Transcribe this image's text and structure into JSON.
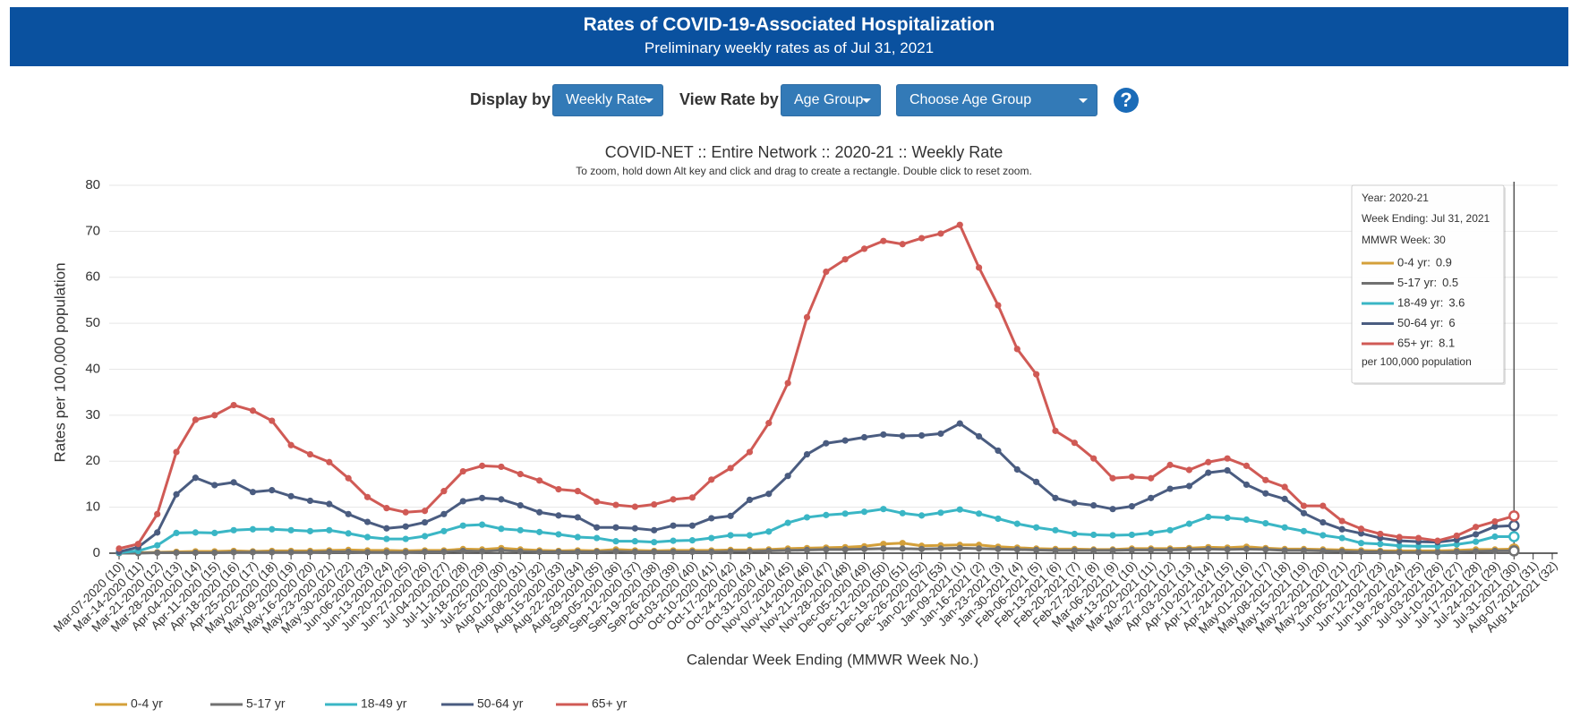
{
  "header": {
    "title": "Rates of COVID-19-Associated Hospitalization",
    "subtitle": "Preliminary weekly rates as of Jul 31, 2021"
  },
  "controls": {
    "display_label": "Display by",
    "display_value": "Weekly Rate",
    "view_label": "View Rate by",
    "view_value": "Age Group",
    "choose": "Choose Age Group",
    "help": "?"
  },
  "chart_data": {
    "type": "line",
    "title": "COVID-NET :: Entire Network :: 2020-21 :: Weekly Rate",
    "subtitle": "To zoom, hold down Alt key and click and drag to create a rectangle. Double click to reset zoom.",
    "x_label": "Calendar Week Ending (MMWR Week No.)",
    "y_label": "Rates per 100,000 population",
    "categories": [
      "Mar-07-2020 (10)",
      "Mar-14-2020 (11)",
      "Mar-21-2020 (12)",
      "Mar-28-2020 (13)",
      "Apr-04-2020 (14)",
      "Apr-11-2020 (15)",
      "Apr-18-2020 (16)",
      "Apr-25-2020 (17)",
      "May-02-2020 (18)",
      "May-09-2020 (19)",
      "May-16-2020 (20)",
      "May-23-2020 (21)",
      "May-30-2020 (22)",
      "Jun-06-2020 (23)",
      "Jun-13-2020 (24)",
      "Jun-20-2020 (25)",
      "Jun-27-2020 (26)",
      "Jul-04-2020 (27)",
      "Jul-11-2020 (28)",
      "Jul-18-2020 (29)",
      "Jul-25-2020 (30)",
      "Aug-01-2020 (31)",
      "Aug-08-2020 (32)",
      "Aug-15-2020 (33)",
      "Aug-22-2020 (34)",
      "Aug-29-2020 (35)",
      "Sep-05-2020 (36)",
      "Sep-12-2020 (37)",
      "Sep-19-2020 (38)",
      "Sep-26-2020 (39)",
      "Oct-03-2020 (40)",
      "Oct-10-2020 (41)",
      "Oct-17-2020 (42)",
      "Oct-24-2020 (43)",
      "Oct-31-2020 (44)",
      "Nov-07-2020 (45)",
      "Nov-14-2020 (46)",
      "Nov-21-2020 (47)",
      "Nov-28-2020 (48)",
      "Dec-05-2020 (49)",
      "Dec-12-2020 (50)",
      "Dec-19-2020 (51)",
      "Dec-26-2020 (52)",
      "Jan-02-2021 (53)",
      "Jan-09-2021 (1)",
      "Jan-16-2021 (2)",
      "Jan-23-2021 (3)",
      "Jan-30-2021 (4)",
      "Feb-06-2021 (5)",
      "Feb-13-2021 (6)",
      "Feb-20-2021 (7)",
      "Feb-27-2021 (8)",
      "Mar-06-2021 (9)",
      "Mar-13-2021 (10)",
      "Mar-20-2021 (11)",
      "Mar-27-2021 (12)",
      "Apr-03-2021 (13)",
      "Apr-10-2021 (14)",
      "Apr-17-2021 (15)",
      "Apr-24-2021 (16)",
      "May-01-2021 (17)",
      "May-08-2021 (18)",
      "May-15-2021 (19)",
      "May-22-2021 (20)",
      "May-29-2021 (21)",
      "Jun-05-2021 (22)",
      "Jun-12-2021 (23)",
      "Jun-19-2021 (24)",
      "Jun-26-2021 (25)",
      "Jul-03-2021 (26)",
      "Jul-10-2021 (27)",
      "Jul-17-2021 (28)",
      "Jul-24-2021 (29)",
      "Jul-31-2021 (30)",
      "Aug-07-2021 (31)",
      "Aug-14-2021 (32)"
    ],
    "series": [
      {
        "name": "0-4 yr",
        "color": "#d4a03a",
        "values": [
          0,
          0.1,
          0.2,
          0.3,
          0.4,
          0.4,
          0.5,
          0.4,
          0.5,
          0.5,
          0.5,
          0.6,
          0.7,
          0.6,
          0.6,
          0.5,
          0.6,
          0.6,
          0.9,
          0.8,
          1.1,
          0.8,
          0.6,
          0.5,
          0.6,
          0.5,
          0.8,
          0.6,
          0.5,
          0.6,
          0.6,
          0.6,
          0.7,
          0.7,
          0.8,
          1,
          1.1,
          1.2,
          1.3,
          1.5,
          2,
          2.2,
          1.6,
          1.7,
          1.8,
          1.8,
          1.4,
          1.2,
          1,
          0.9,
          0.9,
          0.8,
          0.8,
          1,
          1,
          1,
          1.1,
          1.3,
          1.2,
          1.4,
          1.1,
          0.9,
          0.9,
          0.8,
          0.7,
          0.6,
          0.5,
          0.5,
          0.5,
          0.5,
          0.6,
          0.8,
          0.8,
          0.9,
          null,
          null
        ]
      },
      {
        "name": "5-17 yr",
        "color": "#707070",
        "values": [
          0,
          0,
          0.1,
          0.1,
          0.1,
          0.1,
          0.2,
          0.2,
          0.2,
          0.2,
          0.2,
          0.3,
          0.3,
          0.2,
          0.2,
          0.2,
          0.3,
          0.3,
          0.5,
          0.4,
          0.6,
          0.4,
          0.3,
          0.3,
          0.3,
          0.3,
          0.4,
          0.3,
          0.3,
          0.3,
          0.3,
          0.3,
          0.4,
          0.4,
          0.5,
          0.6,
          0.7,
          0.8,
          0.8,
          0.9,
          1,
          1,
          0.9,
          1,
          1.1,
          1,
          0.9,
          0.8,
          0.7,
          0.6,
          0.6,
          0.6,
          0.6,
          0.7,
          0.7,
          0.7,
          0.8,
          0.9,
          0.8,
          0.9,
          0.8,
          0.6,
          0.6,
          0.5,
          0.4,
          0.3,
          0.3,
          0.2,
          0.2,
          0.2,
          0.3,
          0.4,
          0.5,
          0.5,
          null,
          null
        ]
      },
      {
        "name": "18-49 yr",
        "color": "#3ab6c5",
        "values": [
          0.1,
          0.5,
          1.7,
          4.4,
          4.5,
          4.4,
          5,
          5.2,
          5.2,
          5,
          4.8,
          5,
          4.3,
          3.5,
          3.1,
          3.1,
          3.7,
          4.8,
          6,
          6.2,
          5.3,
          5,
          4.6,
          4.1,
          3.5,
          3.3,
          2.6,
          2.6,
          2.4,
          2.7,
          2.8,
          3.3,
          3.9,
          3.9,
          4.7,
          6.6,
          7.8,
          8.3,
          8.6,
          9,
          9.6,
          8.7,
          8.2,
          8.8,
          9.5,
          8.6,
          7.5,
          6.4,
          5.6,
          5,
          4.2,
          4,
          3.9,
          4,
          4.4,
          5,
          6.4,
          7.9,
          7.7,
          7.3,
          6.5,
          5.6,
          4.8,
          3.9,
          3.3,
          2.2,
          2,
          1.6,
          1.5,
          1.5,
          1.9,
          2.5,
          3.6,
          3.6,
          null,
          null
        ]
      },
      {
        "name": "50-64 yr",
        "color": "#4a5c80",
        "values": [
          0.3,
          1.3,
          4.5,
          12.8,
          16.4,
          14.8,
          15.4,
          13.3,
          13.7,
          12.4,
          11.4,
          10.7,
          8.5,
          6.8,
          5.4,
          5.8,
          6.7,
          8.5,
          11.3,
          12,
          11.7,
          10.4,
          8.9,
          8.2,
          7.8,
          5.6,
          5.6,
          5.4,
          5,
          6,
          6,
          7.6,
          8.1,
          11.6,
          12.9,
          16.8,
          21.5,
          23.9,
          24.5,
          25.2,
          25.8,
          25.5,
          25.6,
          26,
          28.2,
          25.4,
          22.3,
          18.2,
          15.5,
          12,
          10.9,
          10.4,
          9.6,
          10.2,
          12,
          14,
          14.6,
          17.5,
          18,
          14.9,
          13,
          11.8,
          8.7,
          6.7,
          5.2,
          4.3,
          3.3,
          2.7,
          2.5,
          2.4,
          2.9,
          4.1,
          5.8,
          6,
          null,
          null
        ]
      },
      {
        "name": "65+ yr",
        "color": "#d05a55",
        "values": [
          1,
          2,
          8.5,
          22,
          29,
          30,
          32.2,
          31,
          28.8,
          23.5,
          21.5,
          19.8,
          16.3,
          12.2,
          9.8,
          8.9,
          9.2,
          13.5,
          17.8,
          19,
          18.8,
          17.2,
          15.8,
          13.9,
          13.5,
          11.2,
          10.5,
          10.1,
          10.6,
          11.7,
          12.1,
          16,
          18.5,
          22,
          28.3,
          37,
          51.3,
          61.2,
          63.9,
          66.2,
          67.9,
          67.2,
          68.5,
          69.5,
          71.4,
          62.1,
          53.9,
          44.4,
          38.9,
          26.6,
          24,
          20.6,
          16.3,
          16.6,
          16.3,
          19.2,
          18.1,
          19.8,
          20.6,
          19,
          15.9,
          14.4,
          10.3,
          10.3,
          7,
          5.3,
          4.2,
          3.5,
          3.3,
          2.7,
          3.8,
          5.7,
          6.9,
          8.1,
          null,
          null
        ]
      }
    ],
    "ylim": [
      0,
      80
    ],
    "yticks": [
      0,
      10,
      20,
      30,
      40,
      50,
      60,
      70,
      80
    ],
    "grid": true
  },
  "tooltip": {
    "lines": [
      "Year: 2020-21",
      "Week Ending: Jul 31, 2021",
      "MMWR Week: 30"
    ],
    "items": [
      {
        "label": "0-4 yr:",
        "value": 0.9
      },
      {
        "label": "5-17 yr:",
        "value": 0.5
      },
      {
        "label": "18-49 yr:",
        "value": 3.6
      },
      {
        "label": "50-64 yr:",
        "value": 6
      },
      {
        "label": "65+ yr:",
        "value": 8.1
      }
    ],
    "footer": "per 100,000 population"
  }
}
